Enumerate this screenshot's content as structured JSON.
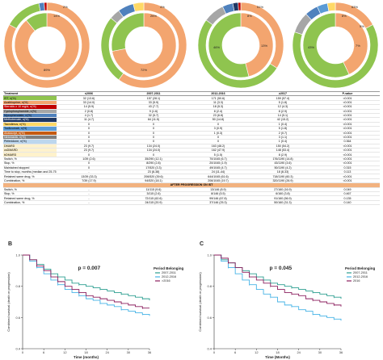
{
  "donuts": [
    {
      "label_outer": [
        "14%",
        "2%"
      ],
      "label_inner": [
        "89%"
      ],
      "inner": [
        {
          "v": 0.89,
          "c": "#f3a56f"
        },
        {
          "v": 0.11,
          "c": "#8fc44f"
        }
      ],
      "outer": [
        {
          "v": 0.83,
          "c": "#f3a56f"
        },
        {
          "v": 0.14,
          "c": "#8fc44f"
        },
        {
          "v": 0.02,
          "c": "#4f81bd"
        },
        {
          "v": 0.01,
          "c": "#c00000"
        }
      ]
    },
    {
      "label_outer": [
        "26%",
        "4%"
      ],
      "label_inner": [
        "72%"
      ],
      "inner": [
        {
          "v": 0.72,
          "c": "#f3a56f"
        },
        {
          "v": 0.28,
          "c": "#8fc44f"
        }
      ],
      "outer": [
        {
          "v": 0.6,
          "c": "#f3a56f"
        },
        {
          "v": 0.26,
          "c": "#8fc44f"
        },
        {
          "v": 0.04,
          "c": "#a6a6a6"
        },
        {
          "v": 0.06,
          "c": "#4f81bd"
        },
        {
          "v": 0.04,
          "c": "#ffd966"
        }
      ]
    },
    {
      "label_outer": [
        "8%",
        "51%"
      ],
      "label_inner": [
        "46%",
        "13%"
      ],
      "inner": [
        {
          "v": 0.46,
          "c": "#f3a56f"
        },
        {
          "v": 0.54,
          "c": "#8fc44f"
        }
      ],
      "outer": [
        {
          "v": 0.34,
          "c": "#f3a56f"
        },
        {
          "v": 0.51,
          "c": "#8fc44f"
        },
        {
          "v": 0.08,
          "c": "#a6a6a6"
        },
        {
          "v": 0.04,
          "c": "#4f81bd"
        },
        {
          "v": 0.02,
          "c": "#1f3864"
        },
        {
          "v": 0.01,
          "c": "#c00000"
        }
      ]
    },
    {
      "label_outer": [
        "8%",
        "63%",
        "5%"
      ],
      "label_inner": [
        "43%",
        "7%"
      ],
      "inner": [
        {
          "v": 0.43,
          "c": "#f3a56f"
        },
        {
          "v": 0.57,
          "c": "#8fc44f"
        }
      ],
      "outer": [
        {
          "v": 0.17,
          "c": "#f3a56f"
        },
        {
          "v": 0.63,
          "c": "#8fc44f"
        },
        {
          "v": 0.08,
          "c": "#a6a6a6"
        },
        {
          "v": 0.05,
          "c": "#4f81bd"
        },
        {
          "v": 0.04,
          "c": "#5b9bd5"
        },
        {
          "v": 0.03,
          "c": "#ffd966"
        }
      ]
    }
  ],
  "table": {
    "headers": [
      "Treatment",
      "≤2006",
      "2007-2011",
      "2012-2016",
      "≥2017",
      "P-value"
    ],
    "rows": [
      {
        "c": "#8fc44f",
        "cells": [
          "IST, n(%)",
          "32 (13.6)",
          "157 (28.1)",
          "171 (50.6)",
          "159 (57.4)",
          "<0.001"
        ]
      },
      {
        "c": "#f3a56f",
        "cells": [
          "Azathioprine, n(%)",
          "33 (14.0)",
          "33 (5.9)",
          "11 (3.3)",
          "5 (1.8)",
          "<0.001"
        ]
      },
      {
        "c": "#c00000",
        "cells": [
          "Steroids ≥ 10 mg/d, n(%)",
          "14 (5.9)",
          "43 (7.7)",
          "18 (5.3)",
          "12 (4.3)",
          "<0.001"
        ]
      },
      {
        "c": "#a6a6a6",
        "cells": [
          "Cyclophosphamide, n(%)",
          "2 (0.8)",
          "9 (1.6)",
          "8 (2.4)",
          "8 (2.9)",
          "<0.001"
        ]
      },
      {
        "c": "#4f81bd",
        "cells": [
          "Mycophenolate, n(%)",
          "4 (1.7)",
          "32 (5.7)",
          "23 (6.8)",
          "14 (5.1)",
          "<0.001"
        ]
      },
      {
        "c": "#1f3864",
        "cells": [
          "Methotrexate, n(%)",
          "11 (4.7)",
          "64 (11.5)",
          "50 (14.8)",
          "42 (15.2)",
          "<0.001"
        ]
      },
      {
        "c": "#ffd966",
        "cells": [
          "Tacrolimus, n(%)",
          "0",
          "0",
          "0",
          "1 (0.4)",
          "<0.001"
        ]
      },
      {
        "c": "#5b9bd5",
        "cells": [
          "Tocilizumab, n(%)",
          "0",
          "0",
          "3 (0.9)",
          "5 (1.8)",
          "<0.001"
        ]
      },
      {
        "c": "#c55a11",
        "cells": [
          "Abatacept, n(%)",
          "0",
          "0",
          "1 (0.3)",
          "2 (0.7)",
          "<0.001"
        ]
      },
      {
        "c": "#7f7f7f",
        "cells": [
          "Nintedanib, n(%)",
          "0",
          "0",
          "0",
          "3 (1.1)",
          "<0.001"
        ]
      },
      {
        "c": "#bdd7ee",
        "cells": [
          "Pirfenidone, n(%)",
          "0",
          "0",
          "0",
          "1 (0.4)",
          "0.364"
        ]
      },
      {
        "c": "#fff2cc",
        "cells": [
          "DMARD",
          "23 (9.7)",
          "134 (24.0)",
          "163 (48.2)",
          "150 (54.2)",
          "<0.001"
        ]
      },
      {
        "c": "#fff2cc",
        "cells": [
          "csDMARD",
          "23 (9.7)",
          "134 (24.0)",
          "162 (47.9)",
          "148 (53.4)",
          "<0.001"
        ]
      },
      {
        "c": "#fff2cc",
        "cells": [
          "bDMARD",
          "0",
          "0",
          "5 (1.5)",
          "8 (2.9)",
          "<0.001"
        ]
      },
      {
        "c": "",
        "cells": [
          "Switch, %",
          "1/39 (2.6)",
          "35/290 (12.1)",
          "70/1045 (6.7)",
          "176/1190 (14.8)",
          "<0.001"
        ]
      },
      {
        "c": "",
        "cells": [
          "Stop, %",
          "0",
          "8/290 (2.8)",
          "20/1045 (1.9)",
          "43/1190 (3.6)",
          "<0.001"
        ]
      },
      {
        "c": "",
        "cells": [
          "Maintained stopped",
          "0",
          "17/520 (3.3)",
          "49/1045 (4.7)",
          "50/1190 (4.2)",
          "0.315"
        ]
      },
      {
        "c": "",
        "cells": [
          "Time to stop, months (median and 25-75 IQR)",
          "-",
          "23 (8-38)",
          "24 (11-44)",
          "18 (8-33)",
          "0.113"
        ]
      },
      {
        "c": "",
        "cells": [
          "Retained same drug, %",
          "13/39 (33.3)",
          "206/520 (39.6)",
          "644/1045 (61.6)",
          "718/1190 (60.3)",
          "<0.001"
        ]
      },
      {
        "c": "",
        "cells": [
          "Combination, %",
          "7/39 (17.9)",
          "94/520 (18.1)",
          "206/1045 (19.7)",
          "320/1190 (26.9)",
          "<0.001"
        ]
      },
      {
        "sec": "AFTER PROGRESSION ON IST"
      },
      {
        "c": "",
        "cells": [
          "Switch, %",
          "-",
          "11/115 (9.6)",
          "13/146 (8.9)",
          "27/160 (16.9)",
          "0.049"
        ]
      },
      {
        "c": "",
        "cells": [
          "Stop, %",
          "-",
          "3/115 (2.6)",
          "8/146 (5.5)",
          "6/160 (3.8)",
          "0.467"
        ]
      },
      {
        "c": "",
        "cells": [
          "Retained same drug, %",
          "-",
          "72/115 (62.6)",
          "99/146 (67.8)",
          "91/160 (56.9)",
          "0.135"
        ]
      },
      {
        "c": "",
        "cells": [
          "Combination, %",
          "-",
          "24/115 (20.9)",
          "37/146 (25.3)",
          "50/160 (31.3)",
          "0.140"
        ]
      }
    ]
  },
  "chart_data": [
    {
      "type": "line",
      "panel_label": "B",
      "ylabel": "Combined survival (death or progression)",
      "xlabel": "Time (months)",
      "xlim": [
        0,
        36
      ],
      "ylim": [
        0.4,
        1.0
      ],
      "yticks": [
        0.4,
        0.6,
        0.8,
        1.0
      ],
      "xticks": [
        0,
        6,
        12,
        18,
        24,
        30,
        36
      ],
      "annotation": "p = 0.007",
      "legend_title": "Period Belonging",
      "series": [
        {
          "name": "2007-2011",
          "color": "#2a9d8f",
          "x": [
            0,
            2,
            4,
            6,
            8,
            10,
            12,
            14,
            16,
            18,
            20,
            22,
            24,
            26,
            28,
            30,
            32,
            34,
            36
          ],
          "y": [
            1.0,
            0.97,
            0.94,
            0.91,
            0.88,
            0.86,
            0.84,
            0.82,
            0.81,
            0.8,
            0.79,
            0.78,
            0.77,
            0.76,
            0.75,
            0.74,
            0.73,
            0.72,
            0.71
          ]
        },
        {
          "name": "2012-2016",
          "color": "#46b3e6",
          "x": [
            0,
            2,
            4,
            6,
            8,
            10,
            12,
            14,
            16,
            18,
            20,
            22,
            24,
            26,
            28,
            30,
            32,
            34,
            36
          ],
          "y": [
            1.0,
            0.96,
            0.92,
            0.88,
            0.84,
            0.81,
            0.78,
            0.76,
            0.74,
            0.72,
            0.71,
            0.69,
            0.68,
            0.67,
            0.65,
            0.64,
            0.63,
            0.62,
            0.61
          ]
        },
        {
          "name": ">2016",
          "color": "#8b1e5e",
          "x": [
            0,
            2,
            4,
            6,
            8,
            10,
            12,
            14,
            16,
            18,
            20,
            22,
            24,
            26,
            28,
            30,
            32,
            34,
            36
          ],
          "y": [
            1.0,
            0.97,
            0.93,
            0.9,
            0.86,
            0.83,
            0.8,
            0.78,
            0.76,
            0.74,
            0.73,
            0.72,
            0.71,
            0.7,
            0.69,
            0.68,
            0.67,
            0.66,
            0.66
          ]
        }
      ]
    },
    {
      "type": "line",
      "panel_label": "C",
      "ylabel": "Combined survival (death or progression)",
      "xlabel": "Time (Months)",
      "xlim": [
        0,
        36
      ],
      "ylim": [
        0.4,
        1.0
      ],
      "yticks": [
        0.4,
        0.6,
        0.8,
        1.0
      ],
      "xticks": [
        0,
        6,
        12,
        18,
        24,
        30,
        36
      ],
      "annotation": "p = 0.045",
      "legend_title": "Period Belonging",
      "series": [
        {
          "name": "2007-2011",
          "color": "#2a9d8f",
          "x": [
            0,
            2,
            4,
            6,
            8,
            10,
            12,
            14,
            16,
            18,
            20,
            22,
            24,
            26,
            28,
            30,
            32,
            34,
            36
          ],
          "y": [
            1.0,
            0.97,
            0.95,
            0.92,
            0.9,
            0.88,
            0.86,
            0.84,
            0.82,
            0.81,
            0.8,
            0.79,
            0.78,
            0.77,
            0.76,
            0.75,
            0.74,
            0.73,
            0.72
          ]
        },
        {
          "name": "2012-2016",
          "color": "#46b3e6",
          "x": [
            0,
            2,
            4,
            6,
            8,
            10,
            12,
            14,
            16,
            18,
            20,
            22,
            24,
            26,
            28,
            30,
            32,
            34,
            36
          ],
          "y": [
            1.0,
            0.96,
            0.92,
            0.88,
            0.84,
            0.81,
            0.78,
            0.75,
            0.73,
            0.7,
            0.68,
            0.67,
            0.65,
            0.64,
            0.62,
            0.61,
            0.6,
            0.59,
            0.58
          ]
        },
        {
          "name": "2016",
          "color": "#8b1e5e",
          "x": [
            0,
            2,
            4,
            6,
            8,
            10,
            12,
            14,
            16,
            18,
            20,
            22,
            24,
            26,
            28,
            30,
            32,
            34,
            36
          ],
          "y": [
            1.0,
            0.98,
            0.95,
            0.92,
            0.89,
            0.86,
            0.84,
            0.82,
            0.8,
            0.78,
            0.76,
            0.75,
            0.74,
            0.72,
            0.71,
            0.7,
            0.69,
            0.68,
            0.67
          ]
        }
      ]
    }
  ]
}
